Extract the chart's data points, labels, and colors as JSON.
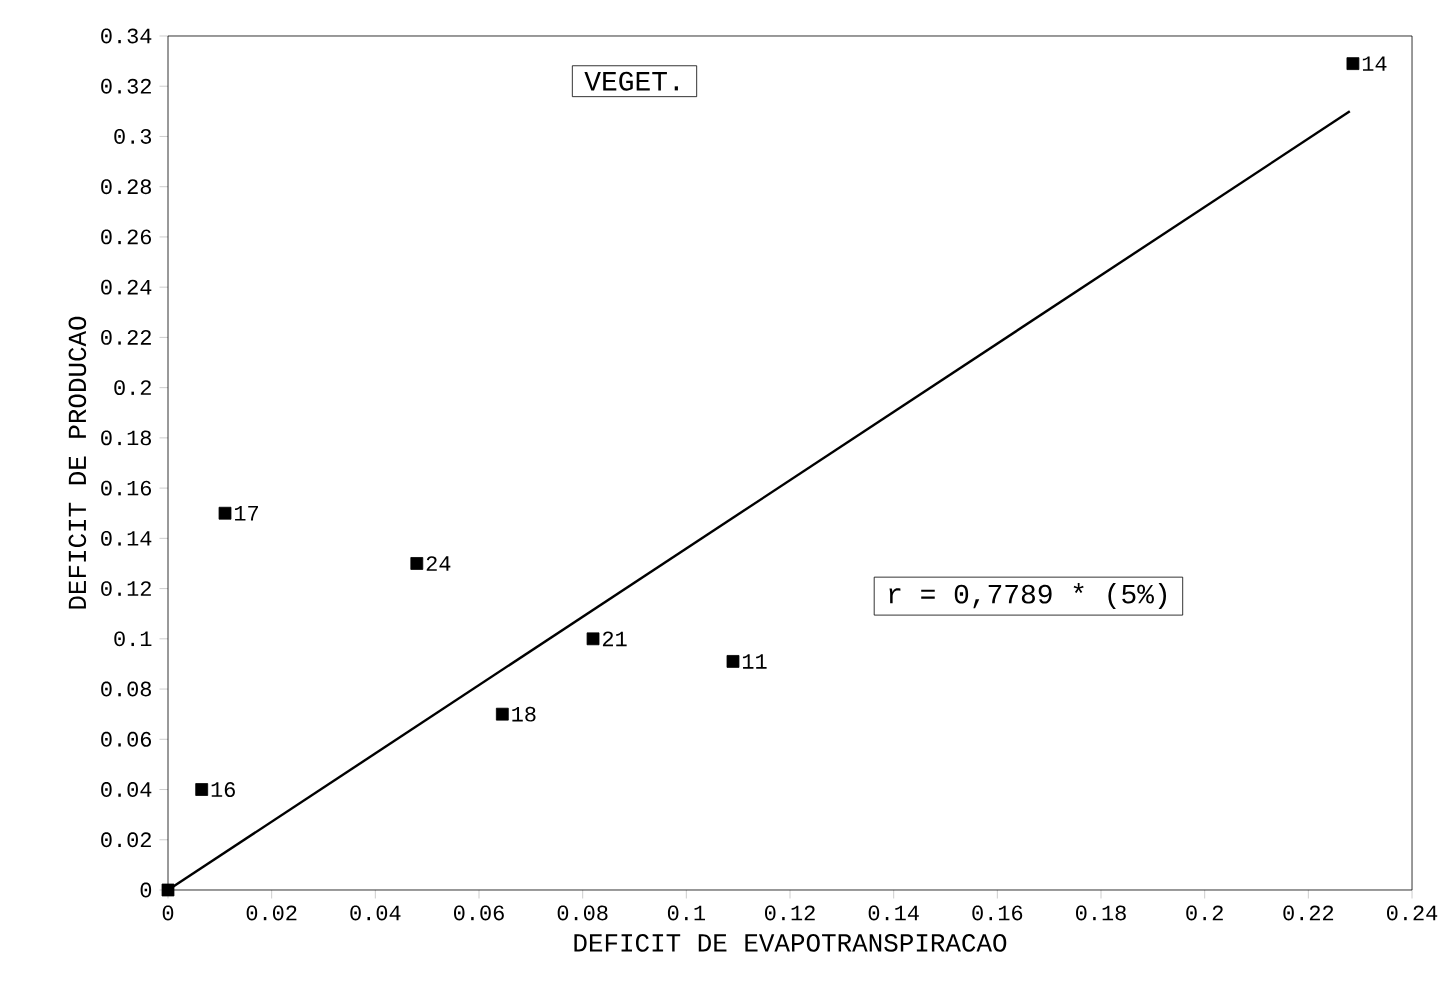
{
  "chart_data": {
    "type": "scatter",
    "xlabel": "DEFICIT DE EVAPOTRANSPIRACAO",
    "ylabel": "DEFICIT DE PRODUCAO",
    "xlim": [
      0,
      0.24
    ],
    "ylim": [
      0,
      0.34
    ],
    "xticks": [
      0,
      0.02,
      0.04,
      0.06,
      0.08,
      0.1,
      0.12,
      0.14,
      0.16,
      0.18,
      0.2,
      0.22,
      0.24
    ],
    "yticks": [
      0,
      0.02,
      0.04,
      0.06,
      0.08,
      0.1,
      0.12,
      0.14,
      0.16,
      0.18,
      0.2,
      0.22,
      0.24,
      0.26,
      0.28,
      0.3,
      0.32,
      0.34
    ],
    "grid": false,
    "marker": "square",
    "series": [
      {
        "color": "#000000",
        "x": [
          0,
          0.0065,
          0.011,
          0.048,
          0.0645,
          0.082,
          0.109,
          0.2286
        ],
        "values": [
          0,
          0.04,
          0.15,
          0.13,
          0.07,
          0.1,
          0.091,
          0.329
        ]
      },
      {
        "type": "line",
        "color": "#000000",
        "line_style": "solid",
        "marker": "none",
        "x": [
          0,
          0.228
        ],
        "values": [
          0,
          0.31
        ]
      }
    ],
    "annotations": [
      "VEGET.",
      "r = 0,7789 * (5%)",
      {
        "text": "16",
        "x": 0.0065,
        "y": 0.04
      },
      {
        "text": "17",
        "x": 0.011,
        "y": 0.15
      },
      {
        "text": "24",
        "x": 0.048,
        "y": 0.13
      },
      {
        "text": "18",
        "x": 0.0645,
        "y": 0.07
      },
      {
        "text": "21",
        "x": 0.082,
        "y": 0.1
      },
      {
        "text": "11",
        "x": 0.109,
        "y": 0.091
      },
      {
        "text": "14",
        "x": 0.2286,
        "y": 0.329
      }
    ]
  }
}
